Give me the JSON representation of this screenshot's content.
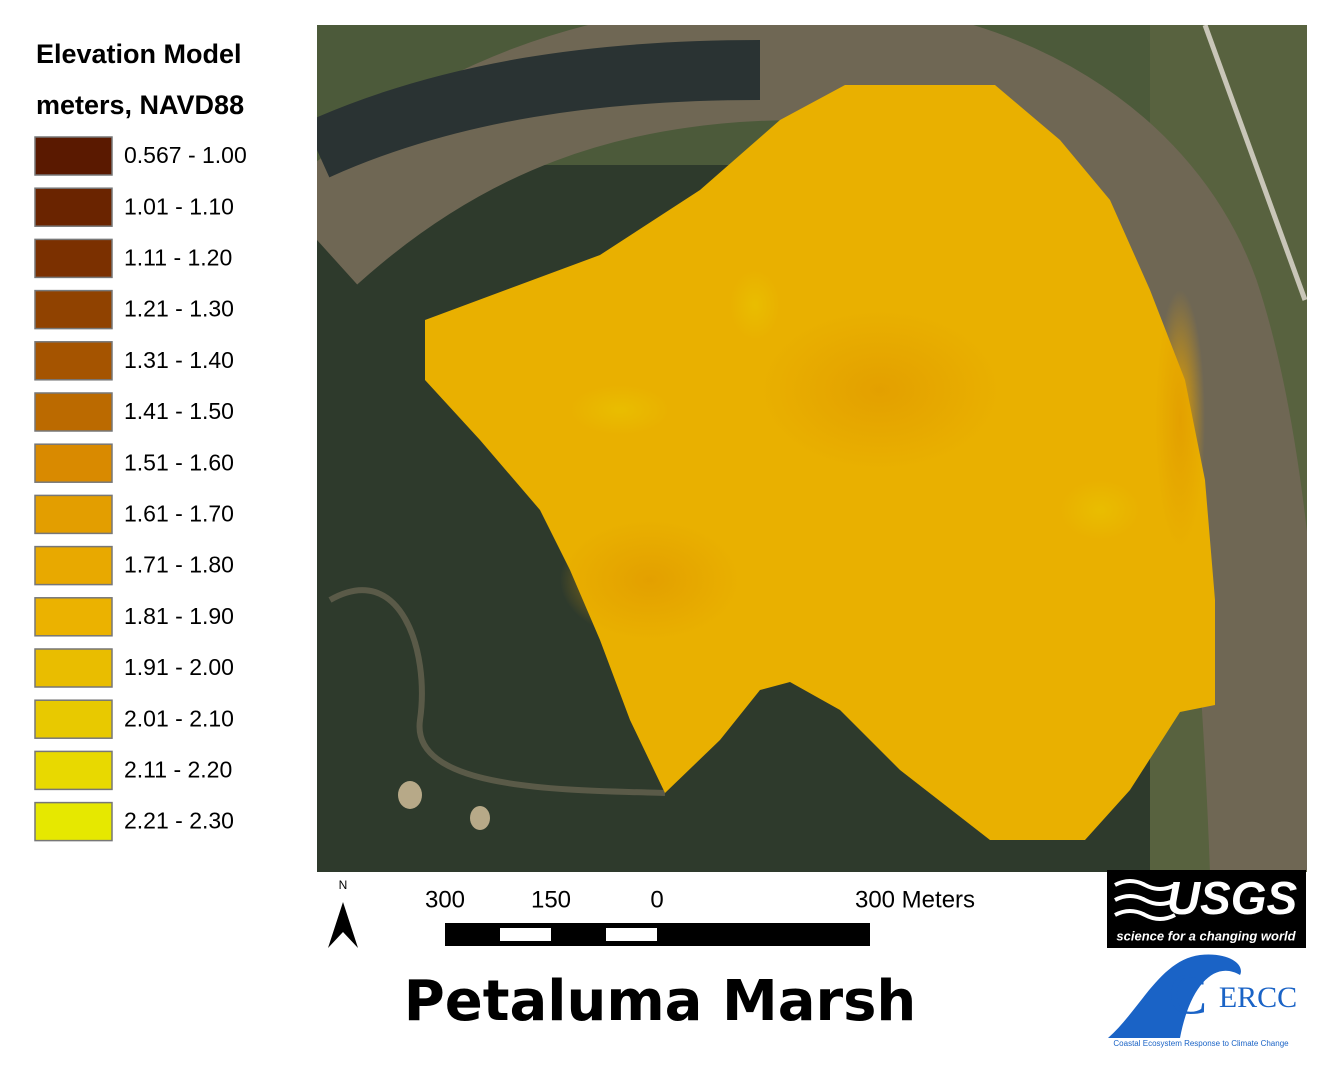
{
  "legend": {
    "title": "Elevation Model",
    "subtitle": "meters, NAVD88",
    "items": [
      {
        "label": "0.567 - 1.00",
        "color": "#5a1900"
      },
      {
        "label": "1.01 - 1.10",
        "color": "#6a2400"
      },
      {
        "label": "1.11 - 1.20",
        "color": "#7b3000"
      },
      {
        "label": "1.21 - 1.30",
        "color": "#904200"
      },
      {
        "label": "1.31 - 1.40",
        "color": "#a55400"
      },
      {
        "label": "1.41 - 1.50",
        "color": "#bb6a00"
      },
      {
        "label": "1.51 - 1.60",
        "color": "#d98a00"
      },
      {
        "label": "1.61 - 1.70",
        "color": "#e39e00"
      },
      {
        "label": "1.71 - 1.80",
        "color": "#e8a900"
      },
      {
        "label": "1.81 - 1.90",
        "color": "#ebb200"
      },
      {
        "label": "1.91 - 2.00",
        "color": "#e9bd00"
      },
      {
        "label": "2.01 - 2.10",
        "color": "#e8c900"
      },
      {
        "label": "2.11 - 2.20",
        "color": "#e8d900"
      },
      {
        "label": "2.21 - 2.30",
        "color": "#e6e800"
      }
    ]
  },
  "north_arrow": "N",
  "scale_bar": {
    "labels": [
      "300",
      "150",
      "0",
      "300 Meters"
    ]
  },
  "title": "Petaluma Marsh",
  "usgs_logo": {
    "name": "USGS",
    "tagline": "science for a changing world"
  },
  "cercc_logo": {
    "letter": "C",
    "name": "ERCC",
    "caption": "Coastal Ecosystem Response to Climate Change"
  }
}
